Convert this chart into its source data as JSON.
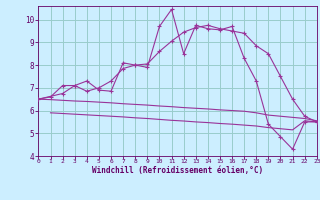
{
  "bg_color": "#cceeff",
  "line_color": "#993399",
  "grid_color": "#99cccc",
  "xlabel": "Windchill (Refroidissement éolien,°C)",
  "xlabel_color": "#660066",
  "tick_color": "#660066",
  "xmin": 0,
  "xmax": 23,
  "ymin": 4,
  "ymax": 10.6,
  "yticks": [
    4,
    5,
    6,
    7,
    8,
    9,
    10
  ],
  "xticks": [
    0,
    1,
    2,
    3,
    4,
    5,
    6,
    7,
    8,
    9,
    10,
    11,
    12,
    13,
    14,
    15,
    16,
    17,
    18,
    19,
    20,
    21,
    22,
    23
  ],
  "line1_x": [
    0,
    1,
    2,
    3,
    4,
    5,
    6,
    7,
    8,
    9,
    10,
    11,
    12,
    13,
    14,
    15,
    16,
    17,
    18,
    19,
    20,
    21,
    22,
    23
  ],
  "line1_y": [
    6.5,
    6.6,
    7.1,
    7.1,
    7.3,
    6.9,
    6.85,
    8.1,
    8.0,
    7.9,
    9.7,
    10.45,
    8.5,
    9.75,
    9.6,
    9.55,
    9.7,
    8.3,
    7.3,
    5.4,
    4.85,
    4.3,
    5.5,
    5.5
  ],
  "line2_x": [
    0,
    2,
    3,
    4,
    5,
    6,
    7,
    8,
    9,
    10,
    11,
    12,
    13,
    14,
    15,
    16,
    17,
    18,
    19,
    20,
    21,
    22,
    23
  ],
  "line2_y": [
    6.5,
    6.75,
    7.1,
    6.85,
    7.0,
    7.3,
    7.85,
    8.0,
    8.05,
    8.6,
    9.05,
    9.45,
    9.65,
    9.75,
    9.6,
    9.5,
    9.4,
    8.85,
    8.5,
    7.5,
    6.5,
    5.75,
    5.5
  ],
  "line3_x": [
    0,
    1,
    2,
    3,
    4,
    5,
    6,
    7,
    8,
    9,
    10,
    11,
    12,
    13,
    14,
    15,
    16,
    17,
    18,
    19,
    20,
    21,
    22,
    23
  ],
  "line3_y": [
    6.5,
    6.48,
    6.45,
    6.42,
    6.4,
    6.37,
    6.34,
    6.3,
    6.27,
    6.24,
    6.2,
    6.17,
    6.13,
    6.1,
    6.07,
    6.03,
    6.0,
    5.97,
    5.9,
    5.8,
    5.75,
    5.7,
    5.65,
    5.55
  ],
  "line4_x": [
    1,
    2,
    3,
    4,
    5,
    6,
    7,
    8,
    9,
    10,
    11,
    12,
    13,
    14,
    15,
    16,
    17,
    18,
    19,
    20,
    21,
    22,
    23
  ],
  "line4_y": [
    5.9,
    5.87,
    5.84,
    5.81,
    5.78,
    5.75,
    5.72,
    5.68,
    5.65,
    5.61,
    5.57,
    5.54,
    5.5,
    5.47,
    5.43,
    5.4,
    5.36,
    5.32,
    5.25,
    5.2,
    5.15,
    5.55,
    5.5
  ]
}
